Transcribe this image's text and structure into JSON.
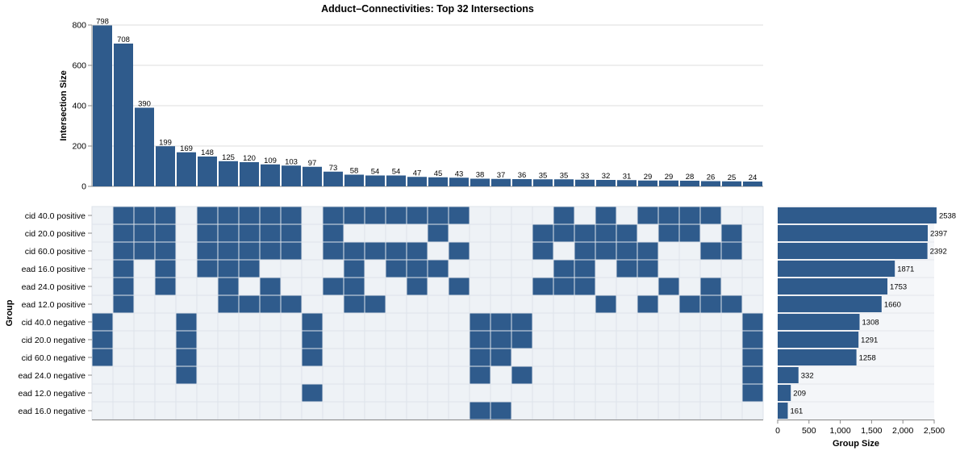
{
  "chart_data": {
    "type": "upset",
    "title": "Adduct–Connectivities: Top 32 Intersections",
    "intersection_axis": {
      "label": "Intersection Size",
      "ylim": [
        0,
        800
      ],
      "ticks": [
        "0",
        "200",
        "400",
        "600",
        "800"
      ]
    },
    "group_axis": {
      "label": "Group Size",
      "xlim": [
        0,
        2500
      ],
      "ticks": [
        "0",
        "500",
        "1,000",
        "1,500",
        "2,000",
        "2,500"
      ]
    },
    "matrix_axis_label": "Group",
    "groups": [
      {
        "name": "cid 40.0 positive",
        "size": 2538
      },
      {
        "name": "cid 20.0 positive",
        "size": 2397
      },
      {
        "name": "cid 60.0 positive",
        "size": 2392
      },
      {
        "name": "ead 16.0 positive",
        "size": 1871
      },
      {
        "name": "ead 24.0 positive",
        "size": 1753
      },
      {
        "name": "ead 12.0 positive",
        "size": 1660
      },
      {
        "name": "cid 40.0 negative",
        "size": 1308
      },
      {
        "name": "cid 20.0 negative",
        "size": 1291
      },
      {
        "name": "cid 60.0 negative",
        "size": 1258
      },
      {
        "name": "ead 24.0 negative",
        "size": 332
      },
      {
        "name": "ead 12.0 negative",
        "size": 209
      },
      {
        "name": "ead 16.0 negative",
        "size": 161
      }
    ],
    "intersections": [
      {
        "size": 798,
        "members": [
          6,
          7,
          8
        ]
      },
      {
        "size": 708,
        "members": [
          0,
          1,
          2,
          3,
          4,
          5
        ]
      },
      {
        "size": 390,
        "members": [
          0,
          1,
          2
        ]
      },
      {
        "size": 199,
        "members": [
          0,
          1,
          2,
          3,
          4
        ]
      },
      {
        "size": 169,
        "members": [
          6,
          7,
          8,
          9
        ]
      },
      {
        "size": 148,
        "members": [
          0,
          1,
          2,
          3
        ]
      },
      {
        "size": 125,
        "members": [
          0,
          1,
          2,
          3,
          4,
          5
        ]
      },
      {
        "size": 120,
        "members": [
          0,
          1,
          2,
          3,
          5
        ]
      },
      {
        "size": 109,
        "members": [
          0,
          1,
          2,
          4,
          5
        ]
      },
      {
        "size": 103,
        "members": [
          0,
          1,
          2,
          5
        ]
      },
      {
        "size": 97,
        "members": [
          6,
          7,
          8,
          10
        ]
      },
      {
        "size": 73,
        "members": [
          0,
          1,
          2,
          4
        ]
      },
      {
        "size": 58,
        "members": [
          0,
          2,
          3,
          4,
          5
        ]
      },
      {
        "size": 54,
        "members": [
          0,
          2,
          5
        ]
      },
      {
        "size": 54,
        "members": [
          0,
          2,
          3
        ]
      },
      {
        "size": 47,
        "members": [
          0,
          2,
          3,
          4
        ]
      },
      {
        "size": 45,
        "members": [
          0,
          1,
          3
        ]
      },
      {
        "size": 43,
        "members": [
          0,
          2,
          4
        ]
      },
      {
        "size": 38,
        "members": [
          6,
          7,
          8,
          9,
          11
        ]
      },
      {
        "size": 37,
        "members": [
          6,
          7,
          8,
          11
        ]
      },
      {
        "size": 36,
        "members": [
          6,
          7,
          9
        ]
      },
      {
        "size": 35,
        "members": [
          1,
          2,
          4
        ]
      },
      {
        "size": 35,
        "members": [
          0,
          1,
          3,
          4
        ]
      },
      {
        "size": 33,
        "members": [
          1,
          2,
          3,
          4
        ]
      },
      {
        "size": 32,
        "members": [
          0,
          1,
          2,
          5
        ]
      },
      {
        "size": 31,
        "members": [
          1,
          2,
          3
        ]
      },
      {
        "size": 29,
        "members": [
          0,
          2,
          3,
          5
        ]
      },
      {
        "size": 29,
        "members": [
          0,
          1,
          4
        ]
      },
      {
        "size": 28,
        "members": [
          0,
          1,
          5
        ]
      },
      {
        "size": 26,
        "members": [
          0,
          2,
          4,
          5
        ]
      },
      {
        "size": 25,
        "members": [
          1,
          2,
          5
        ]
      },
      {
        "size": 24,
        "members": [
          6,
          7,
          8,
          9,
          10
        ]
      }
    ],
    "colors": {
      "bar": "#2f5b8c",
      "cell_filled": "#2f5b8c",
      "cell_empty": "#eef2f6",
      "grid": "#dddddd"
    },
    "grid": true
  }
}
